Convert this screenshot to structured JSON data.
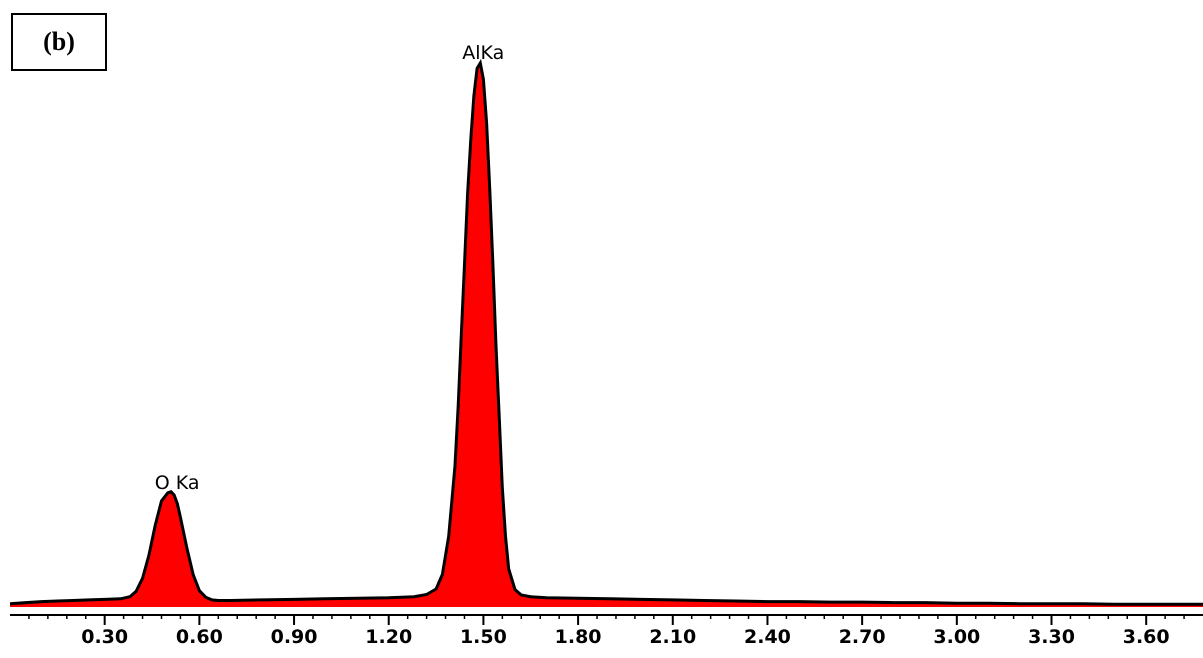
{
  "panel_label": "(b)",
  "colors": {
    "fill": "#ff0000",
    "line": "#000000",
    "axis": "#000000",
    "background": "#ffffff"
  },
  "chart_data": {
    "type": "area",
    "title": "",
    "xlabel": "",
    "ylabel": "",
    "xlim": [
      0.0,
      3.78
    ],
    "ylim": [
      0,
      100
    ],
    "grid": false,
    "xticks": [
      0.3,
      0.6,
      0.9,
      1.2,
      1.5,
      1.8,
      2.1,
      2.4,
      2.7,
      3.0,
      3.3,
      3.6
    ],
    "xtick_labels": [
      "0.30",
      "0.60",
      "0.90",
      "1.20",
      "1.50",
      "1.80",
      "2.10",
      "2.40",
      "2.70",
      "3.00",
      "3.30",
      "3.60"
    ],
    "peaks": [
      {
        "label": "O Ka",
        "x": 0.52,
        "y": 21
      },
      {
        "label": "AlKa",
        "x": 1.49,
        "y": 100
      }
    ],
    "series": [
      {
        "x": [
          0.0,
          0.05,
          0.1,
          0.15,
          0.2,
          0.25,
          0.3,
          0.35,
          0.38,
          0.4,
          0.42,
          0.44,
          0.46,
          0.48,
          0.5,
          0.51,
          0.52,
          0.53,
          0.54,
          0.56,
          0.58,
          0.6,
          0.62,
          0.64,
          0.66,
          0.7,
          0.8,
          0.9,
          1.0,
          1.1,
          1.2,
          1.28,
          1.32,
          1.35,
          1.37,
          1.39,
          1.41,
          1.42,
          1.43,
          1.44,
          1.45,
          1.46,
          1.47,
          1.48,
          1.49,
          1.5,
          1.51,
          1.52,
          1.53,
          1.54,
          1.55,
          1.56,
          1.57,
          1.58,
          1.6,
          1.62,
          1.65,
          1.7,
          1.8,
          1.9,
          2.0,
          2.1,
          2.2,
          2.3,
          2.4,
          2.5,
          2.6,
          2.7,
          2.8,
          2.9,
          3.0,
          3.1,
          3.2,
          3.3,
          3.4,
          3.5,
          3.6,
          3.7,
          3.78
        ],
        "y": [
          0.6,
          0.8,
          1.0,
          1.1,
          1.2,
          1.3,
          1.4,
          1.5,
          1.9,
          2.9,
          5.3,
          9.5,
          15.0,
          19.5,
          21.0,
          21.2,
          20.6,
          19.0,
          16.5,
          11.0,
          6.0,
          3.0,
          1.8,
          1.3,
          1.2,
          1.2,
          1.3,
          1.4,
          1.5,
          1.6,
          1.7,
          1.9,
          2.3,
          3.3,
          6.0,
          13.0,
          26.0,
          37.0,
          50.0,
          63.0,
          76.0,
          86.0,
          94.0,
          99.0,
          100.0,
          97.0,
          89.0,
          77.0,
          63.0,
          48.0,
          35.0,
          22.0,
          13.0,
          7.0,
          3.2,
          2.2,
          1.9,
          1.7,
          1.6,
          1.5,
          1.4,
          1.3,
          1.2,
          1.1,
          1.0,
          1.0,
          0.9,
          0.9,
          0.8,
          0.8,
          0.7,
          0.7,
          0.6,
          0.6,
          0.6,
          0.5,
          0.5,
          0.5,
          0.5
        ]
      }
    ]
  }
}
